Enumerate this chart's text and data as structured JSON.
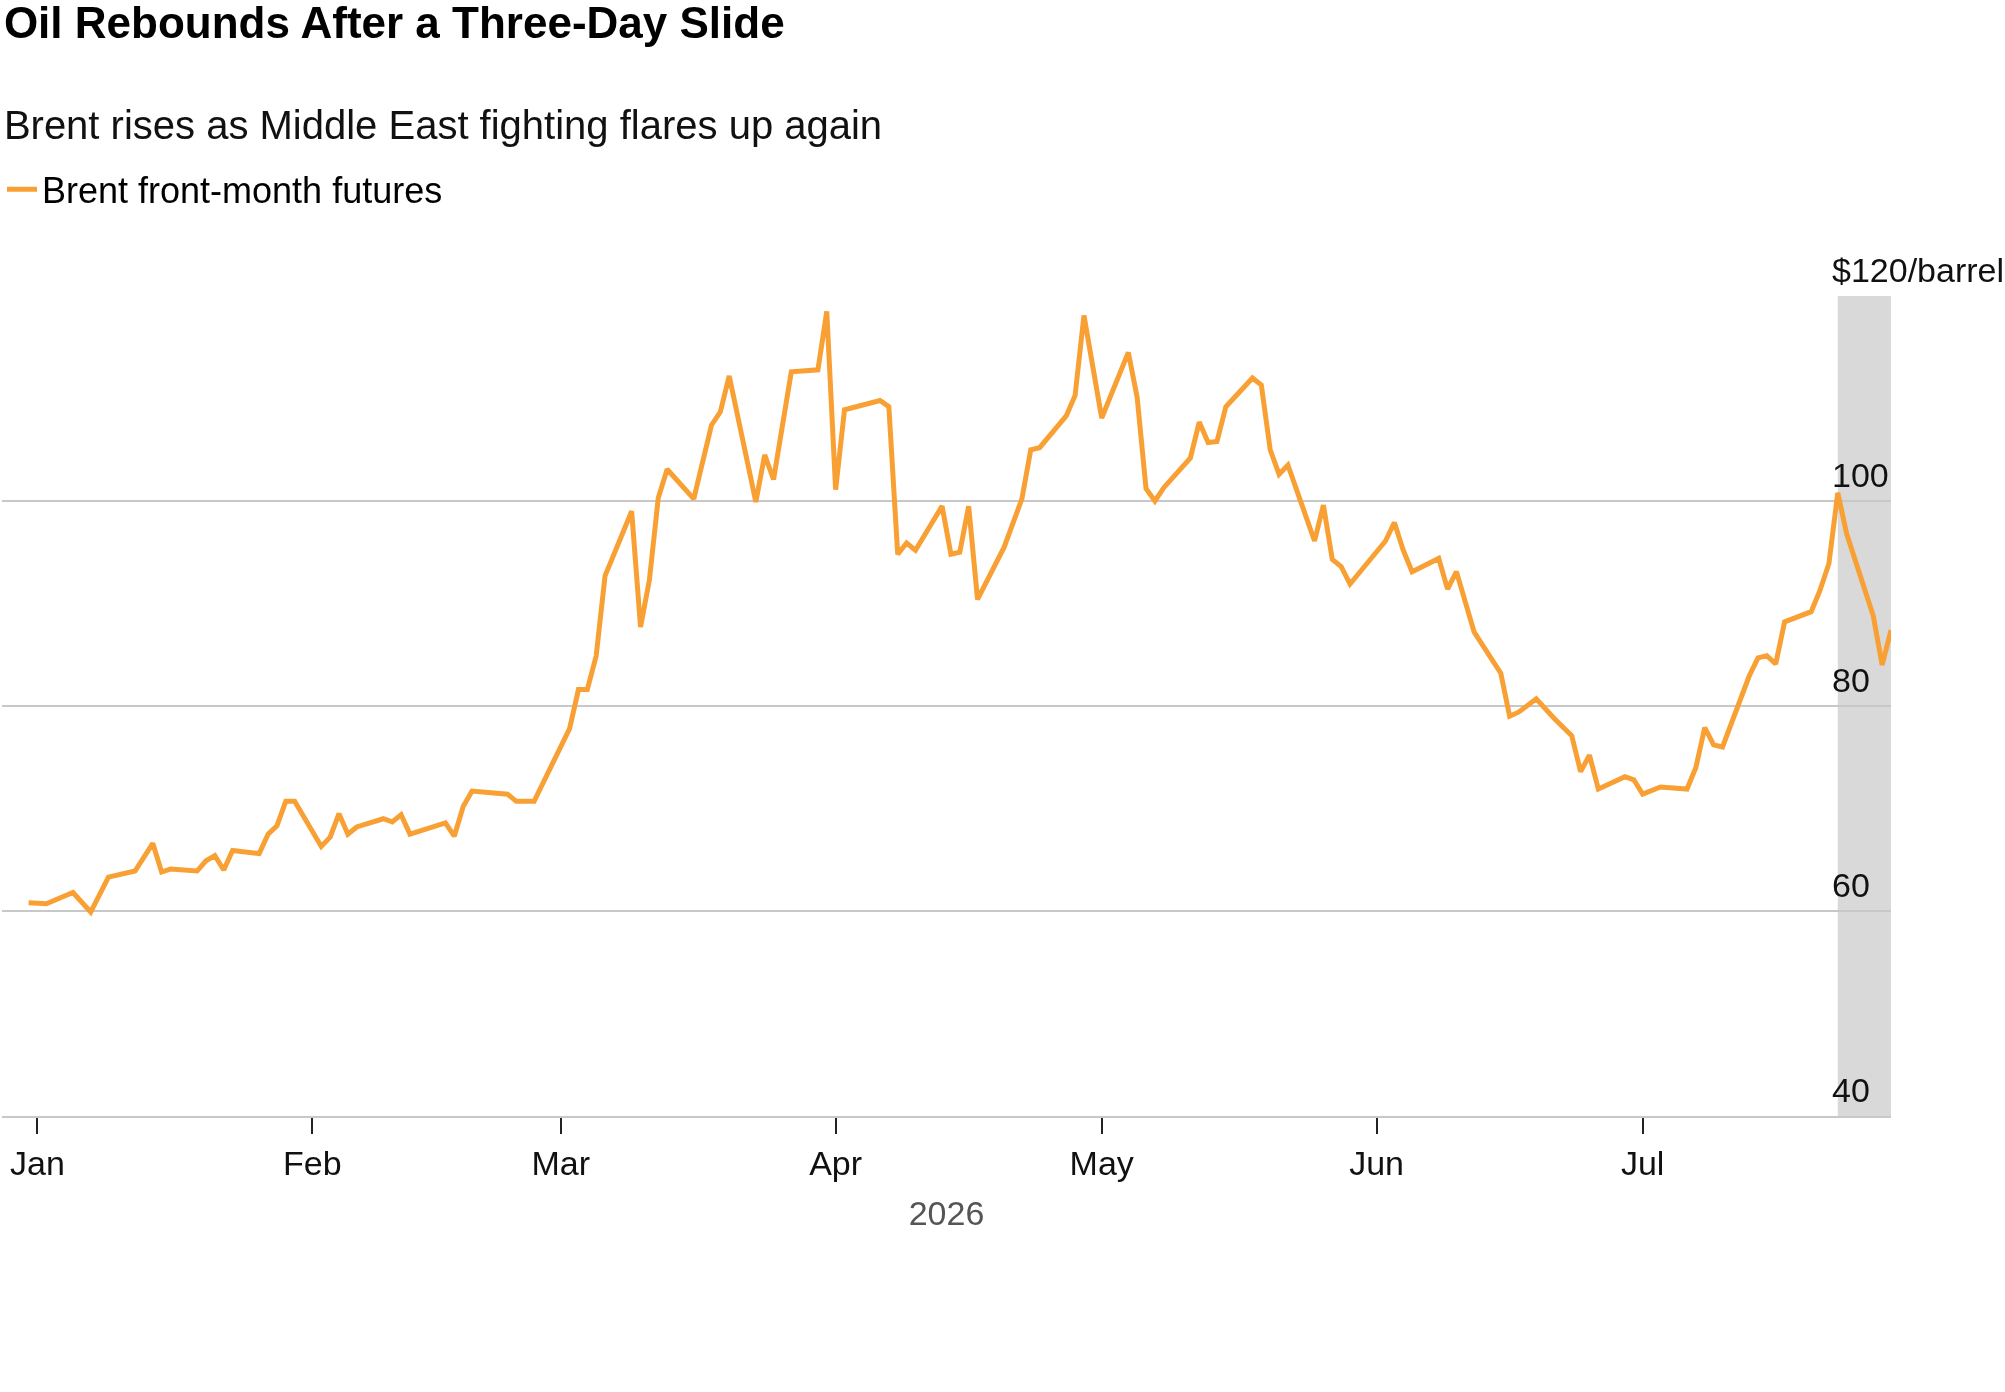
{
  "chart_data": {
    "type": "line",
    "title": "Oil Rebounds After a Three-Day Slide",
    "subtitle": "Brent rises as Middle East fighting flares up again",
    "xlabel": "2026",
    "x": [
      "2025-12-31",
      "2026-01-02",
      "2026-01-05",
      "2026-01-07",
      "2026-01-09",
      "2026-01-12",
      "2026-01-14",
      "2026-01-15",
      "2026-01-16",
      "2026-01-19",
      "2026-01-20",
      "2026-01-21",
      "2026-01-22",
      "2026-01-23",
      "2026-01-26",
      "2026-01-27",
      "2026-01-28",
      "2026-01-29",
      "2026-01-30",
      "2026-02-02",
      "2026-02-03",
      "2026-02-04",
      "2026-02-05",
      "2026-02-06",
      "2026-02-09",
      "2026-02-10",
      "2026-02-11",
      "2026-02-12",
      "2026-02-16",
      "2026-02-17",
      "2026-02-18",
      "2026-02-19",
      "2026-02-23",
      "2026-02-24",
      "2026-02-26",
      "2026-03-02",
      "2026-03-03",
      "2026-03-04",
      "2026-03-05",
      "2026-03-06",
      "2026-03-09",
      "2026-03-10",
      "2026-03-11",
      "2026-03-12",
      "2026-03-13",
      "2026-03-16",
      "2026-03-18",
      "2026-03-19",
      "2026-03-20",
      "2026-03-23",
      "2026-03-24",
      "2026-03-25",
      "2026-03-27",
      "2026-03-30",
      "2026-03-31",
      "2026-04-01",
      "2026-04-02",
      "2026-04-06",
      "2026-04-07",
      "2026-04-08",
      "2026-04-09",
      "2026-04-10",
      "2026-04-13",
      "2026-04-14",
      "2026-04-15",
      "2026-04-16",
      "2026-04-17",
      "2026-04-20",
      "2026-04-22",
      "2026-04-23",
      "2026-04-24",
      "2026-04-27",
      "2026-04-28",
      "2026-04-29",
      "2026-05-01",
      "2026-05-04",
      "2026-05-05",
      "2026-05-06",
      "2026-05-07",
      "2026-05-08",
      "2026-05-11",
      "2026-05-12",
      "2026-05-13",
      "2026-05-14",
      "2026-05-15",
      "2026-05-18",
      "2026-05-19",
      "2026-05-20",
      "2026-05-21",
      "2026-05-22",
      "2026-05-25",
      "2026-05-26",
      "2026-05-27",
      "2026-05-28",
      "2026-05-29",
      "2026-06-02",
      "2026-06-03",
      "2026-06-04",
      "2026-06-05",
      "2026-06-08",
      "2026-06-09",
      "2026-06-10",
      "2026-06-12",
      "2026-06-15",
      "2026-06-16",
      "2026-06-17",
      "2026-06-19",
      "2026-06-21",
      "2026-06-23",
      "2026-06-24",
      "2026-06-25",
      "2026-06-26",
      "2026-06-29",
      "2026-06-30",
      "2026-07-01",
      "2026-07-03",
      "2026-07-06",
      "2026-07-07",
      "2026-07-08",
      "2026-07-09",
      "2026-07-10",
      "2026-07-13",
      "2026-07-14",
      "2026-07-15",
      "2026-07-16",
      "2026-07-17",
      "2026-07-20",
      "2026-07-21",
      "2026-07-22",
      "2026-07-23",
      "2026-07-24",
      "2026-07-27",
      "2026-07-28",
      "2026-07-29"
    ],
    "series": [
      {
        "name": "Brent front-month futures",
        "color": "#f8a033",
        "values": [
          60.8,
          60.7,
          61.8,
          59.9,
          63.3,
          63.9,
          66.6,
          63.8,
          64.1,
          63.9,
          64.9,
          65.4,
          64.0,
          65.9,
          65.6,
          67.5,
          68.3,
          70.7,
          70.7,
          66.3,
          67.2,
          69.5,
          67.5,
          68.2,
          69.0,
          68.7,
          69.4,
          67.5,
          68.6,
          67.3,
          70.2,
          71.7,
          71.4,
          70.7,
          70.7,
          77.8,
          81.6,
          81.6,
          84.9,
          92.7,
          99.0,
          87.7,
          92.3,
          100.3,
          103.1,
          100.2,
          107.4,
          108.7,
          112.2,
          99.9,
          104.5,
          102.1,
          112.6,
          112.8,
          118.5,
          101.1,
          108.9,
          109.8,
          109.2,
          94.8,
          95.9,
          95.2,
          99.5,
          94.8,
          95.0,
          99.5,
          90.4,
          95.5,
          100.2,
          105.0,
          105.2,
          108.3,
          110.3,
          118.1,
          108.1,
          114.5,
          110.1,
          101.2,
          100.0,
          101.3,
          104.2,
          107.7,
          105.7,
          105.8,
          109.2,
          112.0,
          111.3,
          105.0,
          102.6,
          103.5,
          96.1,
          99.6,
          94.3,
          93.6,
          91.9,
          96.1,
          97.9,
          95.2,
          93.1,
          94.4,
          91.4,
          93.1,
          87.2,
          83.2,
          79.0,
          79.4,
          80.7,
          78.8,
          77.1,
          73.6,
          75.2,
          71.9,
          73.1,
          72.8,
          71.4,
          72.1,
          71.9,
          74.0,
          77.9,
          76.2,
          76.0,
          82.9,
          84.7,
          84.9,
          84.1,
          88.2,
          89.2,
          91.3,
          93.9,
          100.8,
          96.8,
          88.8,
          84.0,
          87.4
        ]
      }
    ],
    "xlim": [
      "2025-12-28",
      "2026-07-29"
    ],
    "xticks": [
      {
        "value": "2026-01-01",
        "label": "Jan"
      },
      {
        "value": "2026-02-01",
        "label": "Feb"
      },
      {
        "value": "2026-03-01",
        "label": "Mar"
      },
      {
        "value": "2026-04-01",
        "label": "Apr"
      },
      {
        "value": "2026-05-01",
        "label": "May"
      },
      {
        "value": "2026-06-01",
        "label": "Jun"
      },
      {
        "value": "2026-07-01",
        "label": "Jul"
      }
    ],
    "ylim": [
      40,
      120
    ],
    "yticks": [
      40,
      60,
      80,
      100,
      {
        "value": 120,
        "label": "$120/barrel"
      }
    ],
    "grid": "y",
    "legend": "top left",
    "bands": [
      {
        "axis": "x",
        "from": "2026-07-23",
        "to": "2026-07-29",
        "color": "#d9d9d9"
      }
    ]
  }
}
